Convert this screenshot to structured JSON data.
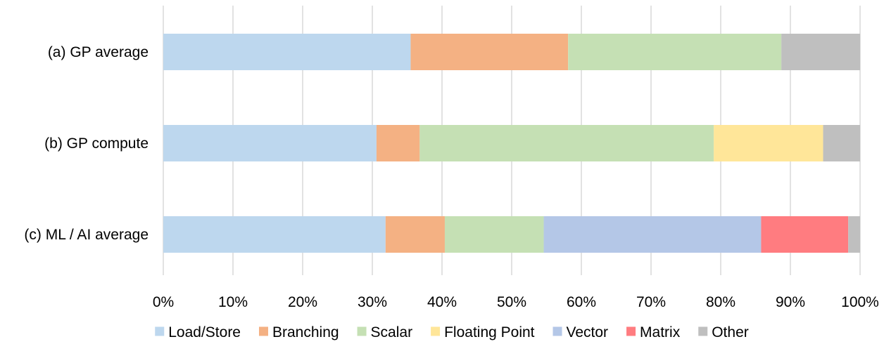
{
  "chart_data": {
    "type": "bar",
    "orientation": "horizontal",
    "stacked": true,
    "categories": [
      "(a) GP average",
      "(b) GP compute",
      "(c) ML / AI average"
    ],
    "series": [
      {
        "name": "Load/Store",
        "color": "#bdd7ee",
        "values": [
          35.5,
          30.6,
          31.9
        ]
      },
      {
        "name": "Branching",
        "color": "#f4b183",
        "values": [
          22.6,
          6.2,
          8.5
        ]
      },
      {
        "name": "Scalar",
        "color": "#c5e0b4",
        "values": [
          30.6,
          42.2,
          14.2
        ]
      },
      {
        "name": "Floating Point",
        "color": "#ffe699",
        "values": [
          0,
          15.7,
          0
        ]
      },
      {
        "name": "Vector",
        "color": "#b4c7e7",
        "values": [
          0,
          0,
          31.2
        ]
      },
      {
        "name": "Matrix",
        "color": "#ff7c80",
        "values": [
          0,
          0,
          12.5
        ]
      },
      {
        "name": "Other",
        "color": "#bfbfbf",
        "values": [
          11.3,
          5.3,
          1.7
        ]
      }
    ],
    "xlim": [
      0,
      100
    ],
    "xticks": [
      "0%",
      "10%",
      "20%",
      "30%",
      "40%",
      "50%",
      "60%",
      "70%",
      "80%",
      "90%",
      "100%"
    ],
    "grid": "vertical",
    "legend_position": "bottom"
  }
}
